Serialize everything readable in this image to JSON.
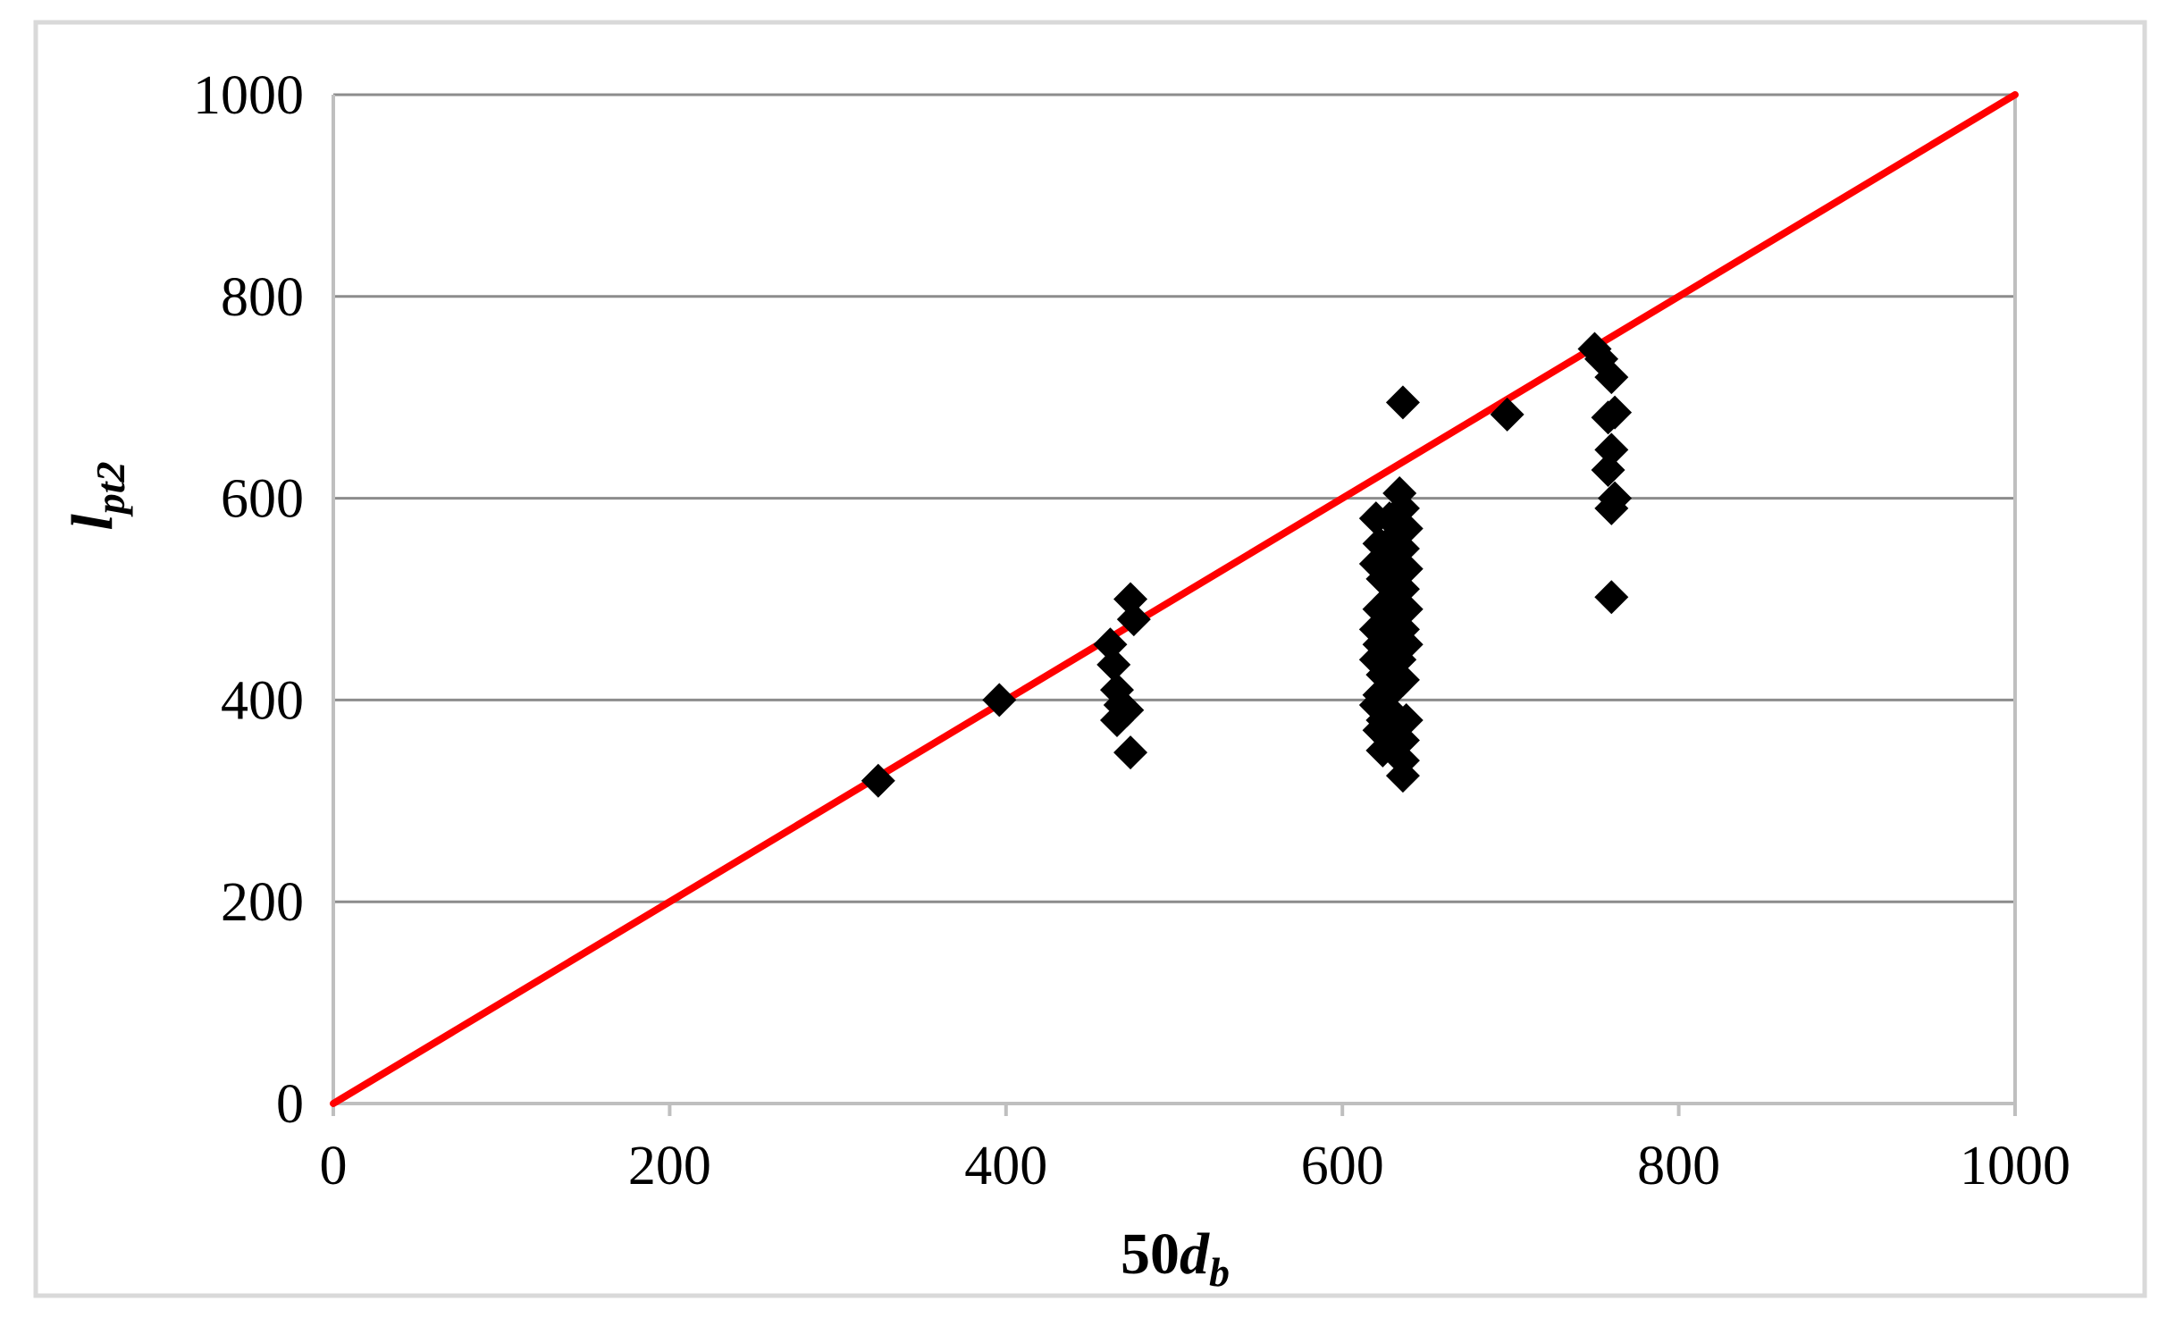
{
  "chart_data": {
    "type": "scatter",
    "title": "",
    "xlabel": {
      "main": "50",
      "italic": "d",
      "sub": "b"
    },
    "ylabel": {
      "italic": "l",
      "sub": "pt2"
    },
    "xlim": [
      0,
      1000
    ],
    "ylim": [
      0,
      1000
    ],
    "x_ticks": [
      0,
      200,
      400,
      600,
      800,
      1000
    ],
    "y_ticks": [
      0,
      200,
      400,
      600,
      800,
      1000
    ],
    "grid": {
      "horizontal": true,
      "vertical": false
    },
    "legend": "none",
    "colors": {
      "points": "#000000",
      "reference_line": "#ff0000",
      "gridlines": "#8c8c8c",
      "axes": "#bfbfbf",
      "frame": "#d9d9d9"
    },
    "reference_line": {
      "x": [
        0,
        1000
      ],
      "y": [
        0,
        1000
      ]
    },
    "series": [
      {
        "marker": "diamond",
        "points": [
          [
            324,
            320
          ],
          [
            396,
            400
          ],
          [
            462,
            455
          ],
          [
            464,
            435
          ],
          [
            466,
            410
          ],
          [
            468,
            395
          ],
          [
            466,
            380
          ],
          [
            474,
            500
          ],
          [
            476,
            480
          ],
          [
            472,
            390
          ],
          [
            474,
            348
          ],
          [
            620,
            580
          ],
          [
            622,
            555
          ],
          [
            620,
            535
          ],
          [
            624,
            520
          ],
          [
            622,
            490
          ],
          [
            620,
            470
          ],
          [
            622,
            455
          ],
          [
            620,
            440
          ],
          [
            624,
            425
          ],
          [
            622,
            405
          ],
          [
            620,
            395
          ],
          [
            624,
            380
          ],
          [
            622,
            370
          ],
          [
            624,
            350
          ],
          [
            628,
            580
          ],
          [
            630,
            560
          ],
          [
            628,
            540
          ],
          [
            630,
            515
          ],
          [
            628,
            500
          ],
          [
            630,
            480
          ],
          [
            628,
            460
          ],
          [
            630,
            445
          ],
          [
            628,
            430
          ],
          [
            630,
            410
          ],
          [
            628,
            390
          ],
          [
            630,
            375
          ],
          [
            628,
            360
          ],
          [
            636,
            695
          ],
          [
            634,
            605
          ],
          [
            636,
            590
          ],
          [
            638,
            570
          ],
          [
            636,
            550
          ],
          [
            638,
            530
          ],
          [
            636,
            510
          ],
          [
            638,
            490
          ],
          [
            636,
            470
          ],
          [
            638,
            455
          ],
          [
            634,
            440
          ],
          [
            636,
            420
          ],
          [
            638,
            380
          ],
          [
            636,
            360
          ],
          [
            636,
            340
          ],
          [
            636,
            325
          ],
          [
            698,
            683
          ],
          [
            750,
            748
          ],
          [
            754,
            738
          ],
          [
            760,
            720
          ],
          [
            762,
            685
          ],
          [
            758,
            680
          ],
          [
            760,
            648
          ],
          [
            758,
            628
          ],
          [
            762,
            600
          ],
          [
            760,
            590
          ],
          [
            760,
            502
          ]
        ]
      }
    ]
  }
}
